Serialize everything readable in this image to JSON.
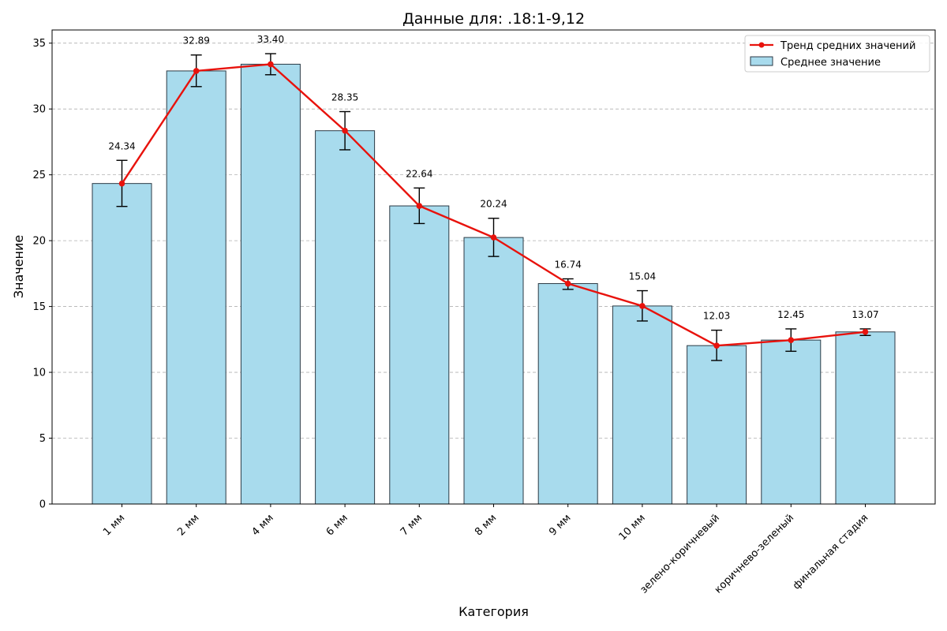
{
  "chart_data": {
    "type": "bar",
    "title": "Данные для: .18:1-9,12",
    "xlabel": "Категория",
    "ylabel": "Значение",
    "ylim": [
      0,
      36
    ],
    "yticks": [
      0,
      5,
      10,
      15,
      20,
      25,
      30,
      35
    ],
    "grid": "horizontal dashed",
    "legend_position": "top-right",
    "categories": [
      "1 мм",
      "2 мм",
      "4 мм",
      "6 мм",
      "7 мм",
      "8 мм",
      "9 мм",
      "10 мм",
      "зелено-коричневый",
      "коричнево-зеленый",
      "финальная стадия"
    ],
    "series": [
      {
        "name": "Среднее значение",
        "kind": "bar",
        "color": "#a8dbed",
        "values": [
          24.34,
          32.89,
          33.4,
          28.35,
          22.64,
          20.24,
          16.74,
          15.04,
          12.03,
          12.45,
          13.07
        ],
        "error_low": [
          22.6,
          31.7,
          32.6,
          26.9,
          21.3,
          18.8,
          16.3,
          13.9,
          10.9,
          11.6,
          12.8
        ],
        "error_high": [
          26.1,
          34.1,
          34.2,
          29.8,
          24.0,
          21.7,
          17.1,
          16.2,
          13.2,
          13.3,
          13.3
        ]
      },
      {
        "name": "Тренд средних значений",
        "kind": "line",
        "color": "#e8120c",
        "values": [
          24.34,
          32.89,
          33.4,
          28.35,
          22.64,
          20.24,
          16.74,
          15.04,
          12.03,
          12.45,
          13.07
        ]
      }
    ],
    "data_labels": [
      "24.34",
      "32.89",
      "33.40",
      "28.35",
      "22.64",
      "20.24",
      "16.74",
      "15.04",
      "12.03",
      "12.45",
      "13.07"
    ]
  }
}
